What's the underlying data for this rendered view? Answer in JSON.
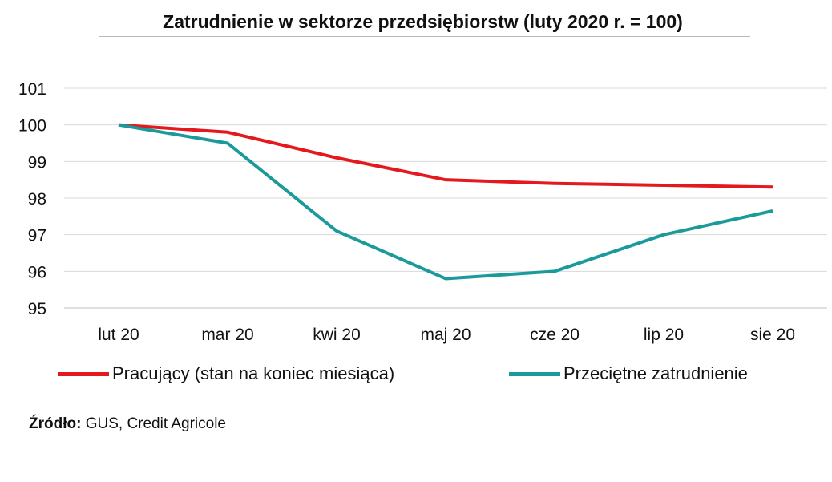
{
  "chart_data": {
    "type": "line",
    "title": "Zatrudnienie w sektorze przedsiębiorstw (luty 2020 r. = 100)",
    "categories": [
      "lut 20",
      "mar 20",
      "kwi 20",
      "maj 20",
      "cze 20",
      "lip 20",
      "sie 20"
    ],
    "series": [
      {
        "name": "Pracujący (stan na koniec miesiąca)",
        "color": "#e3191e",
        "values": [
          100,
          99.8,
          99.1,
          98.5,
          98.4,
          98.35,
          98.3
        ]
      },
      {
        "name": "Przeciętne zatrudnienie",
        "color": "#1a9a9a",
        "values": [
          100,
          99.5,
          97.1,
          95.8,
          96.0,
          97.0,
          97.65
        ]
      }
    ],
    "ylim": [
      95,
      101
    ],
    "yticks": [
      "95",
      "96",
      "97",
      "98",
      "99",
      "100",
      "101"
    ],
    "grid": true,
    "legend": "bottom",
    "xlabel": "",
    "ylabel": ""
  },
  "source": {
    "label": "Źródło:",
    "text": " GUS, Credit Agricole"
  }
}
